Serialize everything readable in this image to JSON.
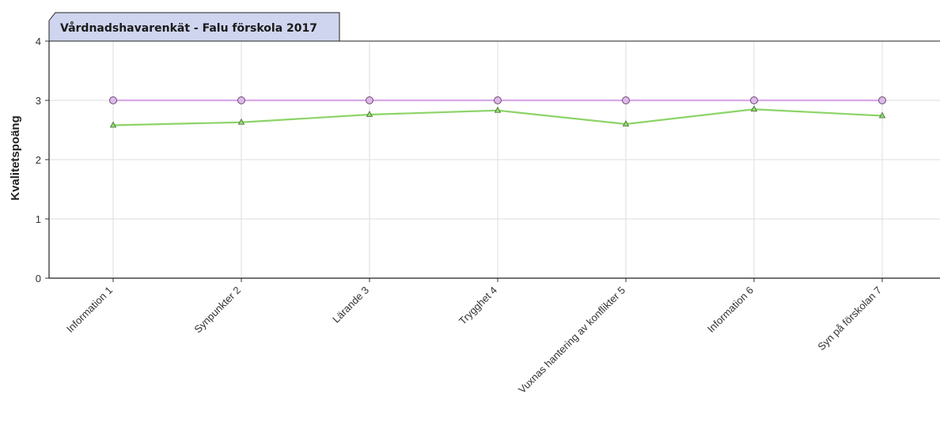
{
  "chart_data": {
    "type": "line",
    "title": "Vårdnadshavarenkät - Falu förskola 2017",
    "ylabel": "Kvalitetspoäng",
    "xlabel": "",
    "ylim": [
      0,
      4
    ],
    "yticks": [
      "0",
      "1",
      "2",
      "3",
      "4"
    ],
    "grid": true,
    "categories": [
      "Information 1",
      "Synpunkter 2",
      "Lärande 3",
      "Trygghet 4",
      "Vuxnas hantering av konflikter 5",
      "Information 6",
      "Syn på förskolan 7"
    ],
    "series": [
      {
        "color": "#d9a8e8",
        "marker": "circle",
        "values": [
          3,
          3,
          3,
          3,
          3,
          3,
          3
        ]
      },
      {
        "color": "#8cd468",
        "marker": "triangle",
        "values": [
          2.58,
          2.63,
          2.76,
          2.83,
          2.6,
          2.85,
          2.74
        ]
      }
    ]
  }
}
